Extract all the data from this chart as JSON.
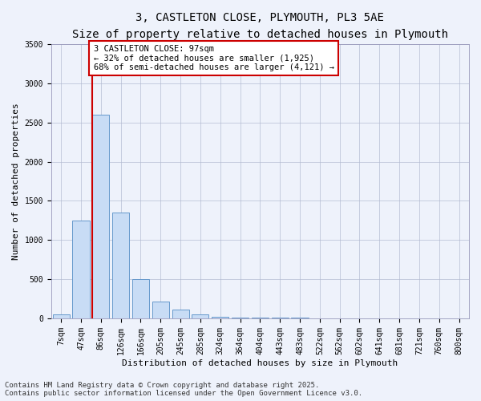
{
  "title_line1": "3, CASTLETON CLOSE, PLYMOUTH, PL3 5AE",
  "title_line2": "Size of property relative to detached houses in Plymouth",
  "xlabel": "Distribution of detached houses by size in Plymouth",
  "ylabel": "Number of detached properties",
  "bar_color": "#c8dcf5",
  "bar_edge_color": "#6699cc",
  "grid_color": "#b0b8d0",
  "background_color": "#eef2fb",
  "categories": [
    "7sqm",
    "47sqm",
    "86sqm",
    "126sqm",
    "166sqm",
    "205sqm",
    "245sqm",
    "285sqm",
    "324sqm",
    "364sqm",
    "404sqm",
    "443sqm",
    "483sqm",
    "522sqm",
    "562sqm",
    "602sqm",
    "641sqm",
    "681sqm",
    "721sqm",
    "760sqm",
    "800sqm"
  ],
  "values": [
    50,
    1250,
    2600,
    1350,
    500,
    210,
    110,
    55,
    20,
    10,
    10,
    10,
    5,
    0,
    0,
    0,
    0,
    0,
    0,
    0,
    0
  ],
  "ylim": [
    0,
    3500
  ],
  "yticks": [
    0,
    500,
    1000,
    1500,
    2000,
    2500,
    3000,
    3500
  ],
  "marker_bar_index": 2,
  "marker_label": "3 CASTLETON CLOSE: 97sqm",
  "marker_smaller_pct": "32%",
  "marker_smaller_n": "1,925",
  "marker_larger_pct": "68%",
  "marker_larger_n": "4,121",
  "annotation_box_color": "#ffffff",
  "annotation_box_edge": "#cc0000",
  "marker_line_color": "#cc0000",
  "footer_line1": "Contains HM Land Registry data © Crown copyright and database right 2025.",
  "footer_line2": "Contains public sector information licensed under the Open Government Licence v3.0.",
  "title_fontsize": 10,
  "subtitle_fontsize": 9,
  "axis_label_fontsize": 8,
  "tick_fontsize": 7,
  "annotation_fontsize": 7.5,
  "footer_fontsize": 6.5
}
